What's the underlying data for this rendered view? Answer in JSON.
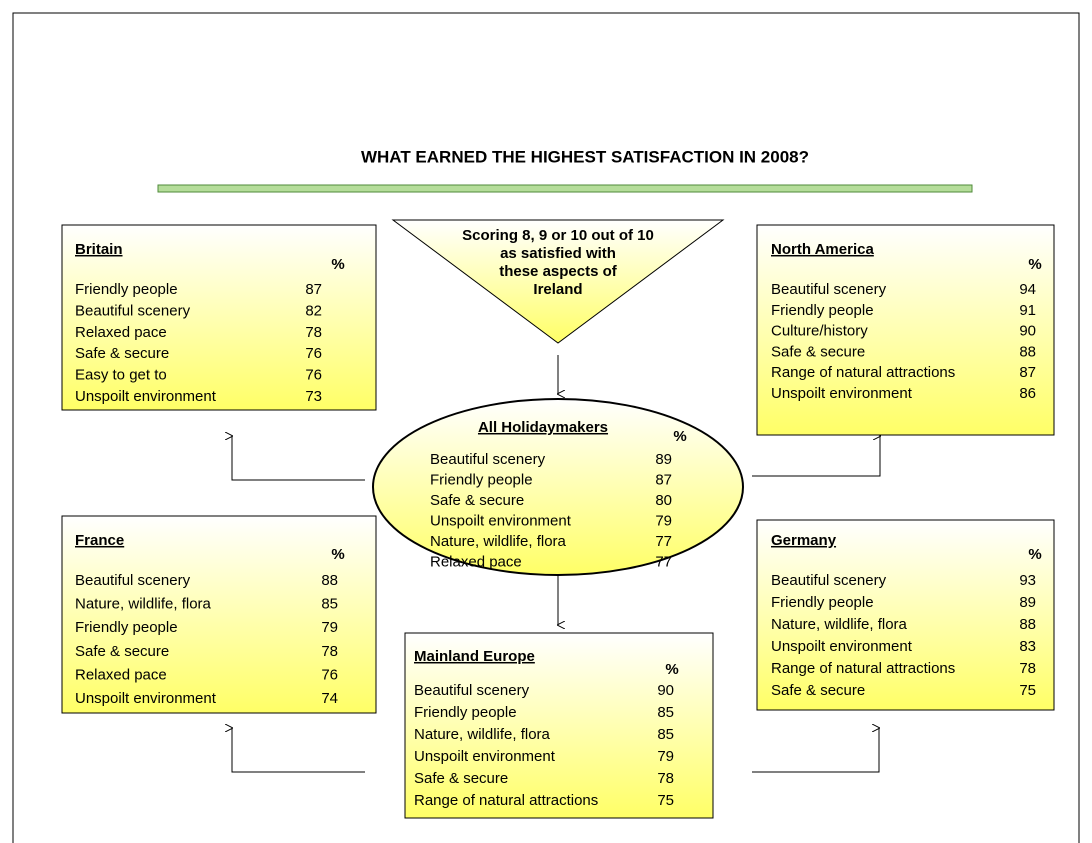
{
  "title": "WHAT EARNED THE HIGHEST SATISFACTION IN 2008?",
  "note": [
    "Scoring 8, 9 or 10 out of 10",
    "as satisfied with",
    "these aspects of",
    "Ireland"
  ],
  "groups": [
    {
      "name": "All Holidaymakers",
      "unit": "%",
      "rows": [
        {
          "label": "Beautiful scenery",
          "value": 89
        },
        {
          "label": "Friendly people",
          "value": 87
        },
        {
          "label": "Safe & secure",
          "value": 80
        },
        {
          "label": "Unspoilt environment",
          "value": 79
        },
        {
          "label": "Nature, wildlife, flora",
          "value": 77
        },
        {
          "label": "Relaxed pace",
          "value": 77
        }
      ]
    },
    {
      "name": "Britain",
      "unit": "%",
      "rows": [
        {
          "label": "Friendly people",
          "value": 87
        },
        {
          "label": "Beautiful scenery",
          "value": 82
        },
        {
          "label": "Relaxed pace",
          "value": 78
        },
        {
          "label": "Safe & secure",
          "value": 76
        },
        {
          "label": "Easy to get to",
          "value": 76
        },
        {
          "label": "Unspoilt environment",
          "value": 73
        }
      ]
    },
    {
      "name": "North America",
      "unit": "%",
      "rows": [
        {
          "label": "Beautiful scenery",
          "value": 94
        },
        {
          "label": "Friendly people",
          "value": 91
        },
        {
          "label": "Culture/history",
          "value": 90
        },
        {
          "label": "Safe & secure",
          "value": 88
        },
        {
          "label": "Range of natural attractions",
          "value": 87
        },
        {
          "label": "Unspoilt environment",
          "value": 86
        }
      ]
    },
    {
      "name": "France",
      "unit": "%",
      "rows": [
        {
          "label": "Beautiful scenery",
          "value": 88
        },
        {
          "label": "Nature, wildlife, flora",
          "value": 85
        },
        {
          "label": "Friendly people",
          "value": 79
        },
        {
          "label": "Safe & secure",
          "value": 78
        },
        {
          "label": "Relaxed pace",
          "value": 76
        },
        {
          "label": "Unspoilt environment",
          "value": 74
        }
      ]
    },
    {
      "name": "Germany",
      "unit": "%",
      "rows": [
        {
          "label": "Beautiful scenery",
          "value": 93
        },
        {
          "label": "Friendly people",
          "value": 89
        },
        {
          "label": "Nature, wildlife, flora",
          "value": 88
        },
        {
          "label": "Unspoilt environment",
          "value": 83
        },
        {
          "label": "Range of natural attractions",
          "value": 78
        },
        {
          "label": "Safe & secure",
          "value": 75
        }
      ]
    },
    {
      "name": "Mainland Europe",
      "unit": "%",
      "rows": [
        {
          "label": "Beautiful scenery",
          "value": 90
        },
        {
          "label": "Friendly people",
          "value": 85
        },
        {
          "label": "Nature, wildlife, flora",
          "value": 85
        },
        {
          "label": "Unspoilt environment",
          "value": 79
        },
        {
          "label": "Safe & secure",
          "value": 78
        },
        {
          "label": "Range of natural attractions",
          "value": 75
        }
      ]
    }
  ]
}
